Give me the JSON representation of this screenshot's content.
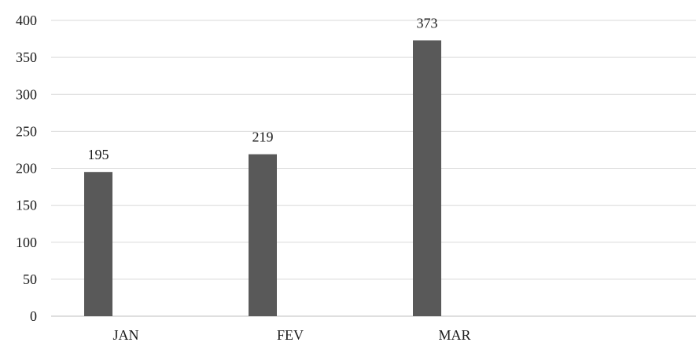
{
  "chart_data": {
    "type": "bar",
    "categories": [
      "JAN",
      "FEV",
      "MAR"
    ],
    "values": [
      195,
      219,
      373
    ],
    "data_labels": [
      "195",
      "219",
      "373"
    ],
    "y_ticks": [
      "0",
      "50",
      "100",
      "150",
      "200",
      "250",
      "300",
      "350",
      "400"
    ],
    "ylim": [
      0,
      400
    ],
    "grid": true,
    "legend": "none",
    "bar_color": "#595959",
    "grid_color": "#d9d9d9"
  }
}
